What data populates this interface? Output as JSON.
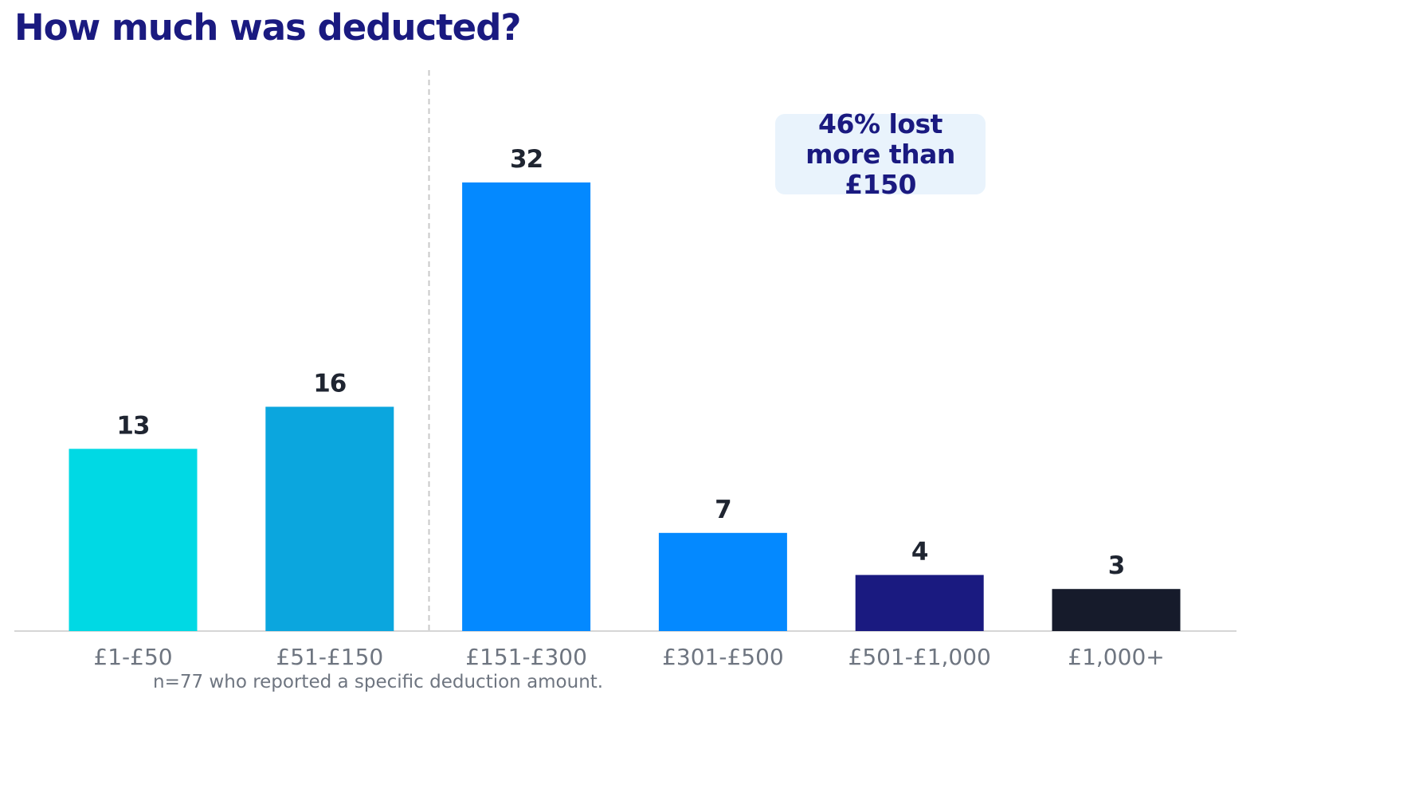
{
  "chart_data": {
    "type": "bar",
    "title": "How much was deducted?",
    "categories": [
      "£1-£50",
      "£51-£150",
      "£151-£300",
      "£301-£500",
      "£501-£1,000",
      "£1,000+"
    ],
    "values": [
      13,
      16,
      32,
      7,
      4,
      3
    ],
    "data_labels": [
      "13",
      "16",
      "32",
      "7",
      "4",
      "3"
    ],
    "colors": [
      "#00d9e4",
      "#0ba6de",
      "#0489ff",
      "#0489ff",
      "#1a1a80",
      "#161b2b"
    ],
    "xlabel": "",
    "ylabel": "",
    "ylim": [
      0,
      32
    ],
    "grid": false,
    "divider_after_category": "£51-£150",
    "annotation": "46% lost more than £150",
    "footnote": "n=77 who reported a specific deduction amount."
  }
}
